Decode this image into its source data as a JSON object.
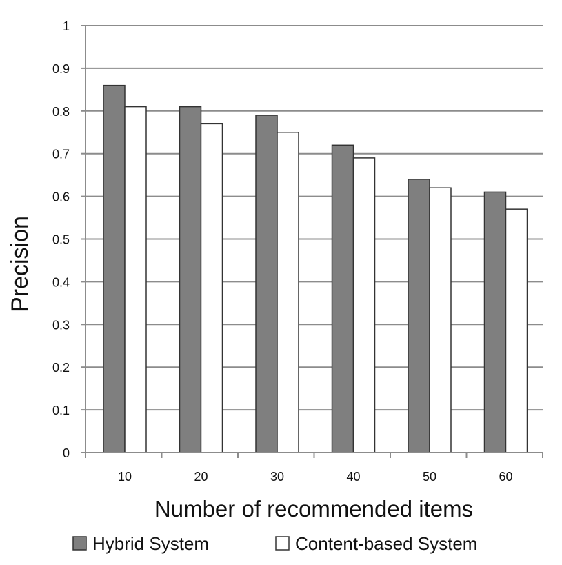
{
  "chart_data": {
    "type": "bar",
    "categories": [
      "10",
      "20",
      "30",
      "40",
      "50",
      "60"
    ],
    "series": [
      {
        "name": "Hybrid System",
        "values": [
          0.86,
          0.81,
          0.79,
          0.72,
          0.64,
          0.61
        ],
        "color": "#7f7f7f"
      },
      {
        "name": "Content-based System",
        "values": [
          0.81,
          0.77,
          0.75,
          0.69,
          0.62,
          0.57
        ],
        "color": "#ffffff"
      }
    ],
    "xlabel": "Number of recommended items",
    "ylabel": "Precision",
    "ylim": [
      0,
      1
    ],
    "yticks": [
      "0",
      "0.1",
      "0.2",
      "0.3",
      "0.4",
      "0.5",
      "0.6",
      "0.7",
      "0.8",
      "0.9",
      "1"
    ],
    "grid": true,
    "legend": "bottom"
  }
}
